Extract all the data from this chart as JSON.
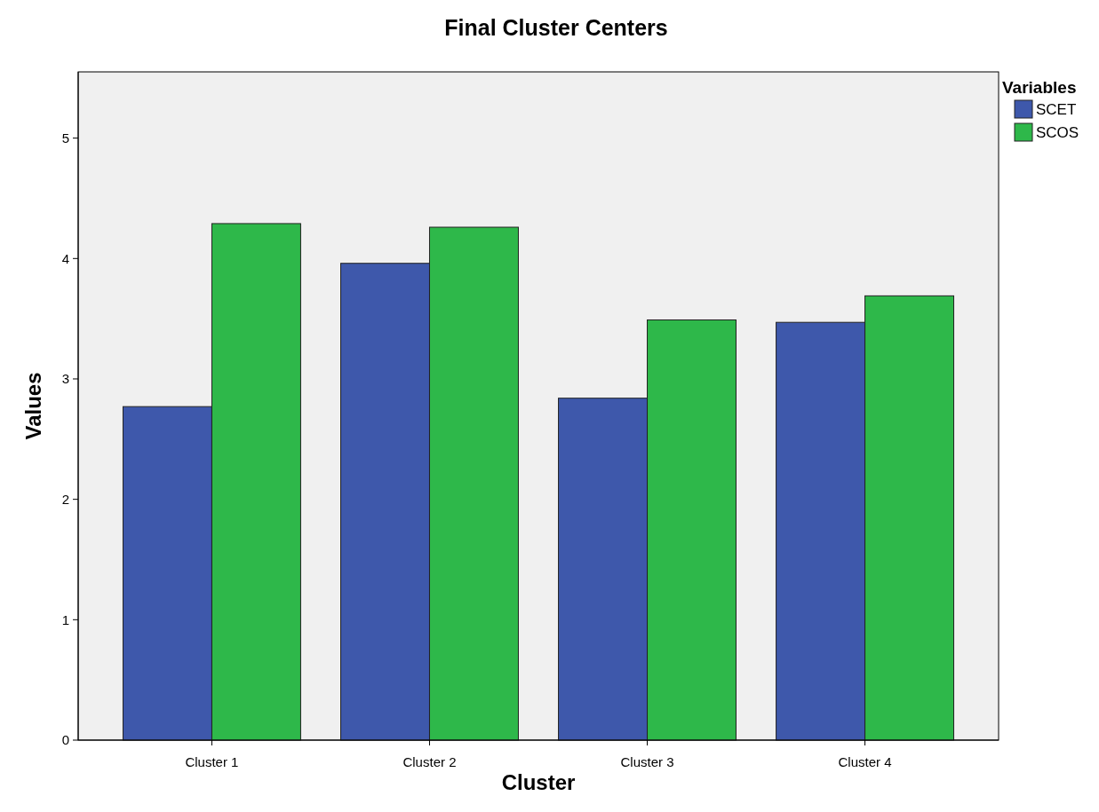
{
  "chart_data": {
    "type": "bar",
    "title": "Final Cluster Centers",
    "xlabel": "Cluster",
    "ylabel": "Values",
    "legend_title": "Variables",
    "legend": "top right",
    "categories": [
      "Cluster 1",
      "Cluster 2",
      "Cluster 3",
      "Cluster 4"
    ],
    "series": [
      {
        "name": "SCET",
        "color": "#3e58ab",
        "values": [
          2.77,
          3.96,
          2.84,
          3.47
        ]
      },
      {
        "name": "SCOS",
        "color": "#2eb84a",
        "values": [
          4.29,
          4.26,
          3.49,
          3.69
        ]
      }
    ],
    "ylim": [
      0,
      5.55
    ],
    "yticks": [
      0,
      1,
      2,
      3,
      4,
      5
    ],
    "grid": false
  }
}
